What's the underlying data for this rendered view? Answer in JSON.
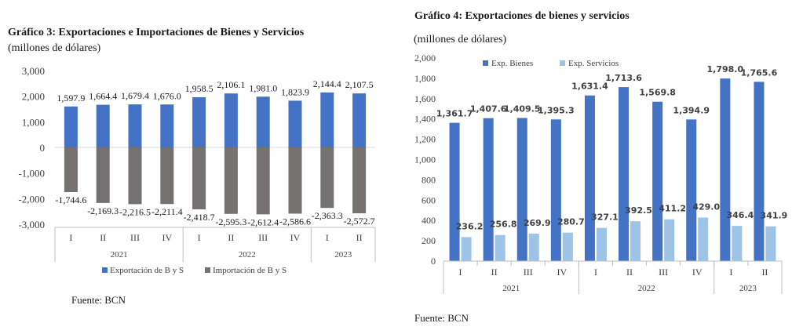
{
  "left": {
    "title": "Gráfico 3:  Exportaciones e Importaciones de Bienes y Servicios",
    "subtitle": "(millones de dólares)",
    "source": "Fuente: BCN"
  },
  "right": {
    "title": "Gráfico 4: Exportaciones de bienes y servicios",
    "subtitle": "(millones de dólares)",
    "source": "Fuente: BCN"
  },
  "chart_data": [
    {
      "type": "bar",
      "stacked": true,
      "categories": [
        "I",
        "II",
        "III",
        "IV",
        "I",
        "II",
        "III",
        "IV",
        "I",
        "II"
      ],
      "years": [
        {
          "label": "2021",
          "count": 4
        },
        {
          "label": "2022",
          "count": 4
        },
        {
          "label": "2023",
          "count": 2
        }
      ],
      "series": [
        {
          "name": "Exportación de B y S",
          "color": "#4472C4",
          "values": [
            1597.9,
            1664.4,
            1679.4,
            1676.0,
            1958.5,
            2106.1,
            1981.0,
            1823.9,
            2144.4,
            2107.5
          ],
          "labels": [
            "1,597.9",
            "1,664.4",
            "1,679.4",
            "1,676.0",
            "1,958.5",
            "2,106.1",
            "1,981.0",
            "1,823.9",
            "2,144.4",
            "2,107.5"
          ]
        },
        {
          "name": "Importación de B y S",
          "color": "#767171",
          "values": [
            -1744.6,
            -2169.3,
            -2216.5,
            -2211.4,
            -2418.7,
            -2595.3,
            -2612.4,
            -2586.6,
            -2363.3,
            -2572.7
          ],
          "labels": [
            "-1,744.6",
            "-2,169.3",
            "-2,216.5",
            "-2,211.4",
            "-2,418.7",
            "-2,595.3",
            "-2,612.4",
            "-2,586.6",
            "-2,363.3",
            "-2,572.7"
          ]
        }
      ],
      "ylim": [
        -3000,
        3000
      ],
      "yticks": [
        -3000,
        -2000,
        -1000,
        0,
        1000,
        2000,
        3000
      ],
      "ytick_labels": [
        "-3,000",
        "-2,000",
        "-1,000",
        "0",
        "1,000",
        "2,000",
        "3,000"
      ],
      "grid": false,
      "legend": "bottom"
    },
    {
      "type": "bar",
      "categories": [
        "I",
        "II",
        "III",
        "IV",
        "I",
        "II",
        "III",
        "IV",
        "I",
        "II"
      ],
      "years": [
        {
          "label": "2021",
          "count": 4
        },
        {
          "label": "2022",
          "count": 4
        },
        {
          "label": "2023",
          "count": 2
        }
      ],
      "series": [
        {
          "name": "Exp. Bienes",
          "color": "#4472C4",
          "values": [
            1361.7,
            1407.6,
            1409.5,
            1395.3,
            1631.4,
            1713.6,
            1569.8,
            1394.9,
            1798.0,
            1765.6
          ],
          "labels": [
            "1,361.7",
            "1,407.6",
            "1,409.5",
            "1,395.3",
            "1,631.4",
            "1,713.6",
            "1,569.8",
            "1,394.9",
            "1,798.0",
            "1,765.6"
          ]
        },
        {
          "name": "Exp. Servicios",
          "color": "#9DC3E6",
          "values": [
            236.2,
            256.8,
            269.9,
            280.7,
            327.1,
            392.5,
            411.2,
            429.0,
            346.4,
            341.9
          ],
          "labels": [
            "236.2",
            "256.8",
            "269.9",
            "280.7",
            "327.1",
            "392.5",
            "411.2",
            "429.0",
            "346.4",
            "341.9"
          ]
        }
      ],
      "ylim": [
        0,
        2000
      ],
      "yticks": [
        0,
        200,
        400,
        600,
        800,
        1000,
        1200,
        1400,
        1600,
        1800,
        2000
      ],
      "ytick_labels": [
        "0",
        "200",
        "400",
        "600",
        "800",
        "1,000",
        "1,200",
        "1,400",
        "1,600",
        "1,800",
        "2,000"
      ],
      "grid": false,
      "legend": "top-left"
    }
  ]
}
